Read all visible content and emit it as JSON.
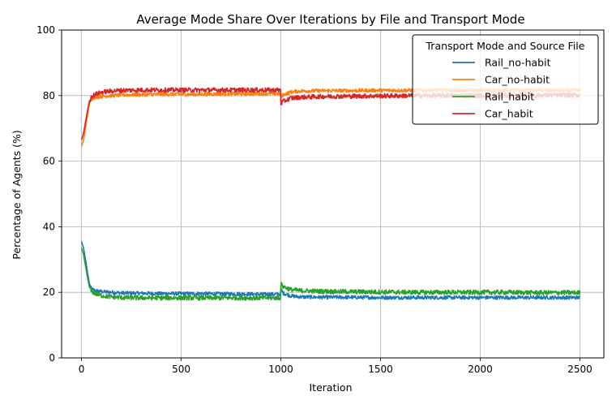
{
  "chart_data": {
    "type": "line",
    "title": "Average Mode Share Over Iterations by File and Transport Mode",
    "xlabel": "Iteration",
    "ylabel": "Percentage of Agents (%)",
    "xlim": [
      -100,
      2620
    ],
    "ylim": [
      0,
      100
    ],
    "xticks": [
      "0",
      "500",
      "1000",
      "1500",
      "2000",
      "2500"
    ],
    "yticks": [
      "0",
      "20",
      "40",
      "60",
      "80",
      "100"
    ],
    "grid": true,
    "legend": {
      "title": "Transport Mode and Source File",
      "position": "top-right"
    },
    "series": [
      {
        "name": "Rail_no-habit",
        "color": "#1f77b4",
        "x": [
          0,
          10,
          20,
          30,
          40,
          50,
          70,
          100,
          150,
          200,
          300,
          400,
          500,
          600,
          700,
          800,
          900,
          999,
          1000,
          1010,
          1050,
          1100,
          1200,
          1300,
          1500,
          1700,
          1900,
          2100,
          2300,
          2500
        ],
        "y": [
          35.5,
          33.5,
          30,
          26,
          22.5,
          21,
          20.5,
          20.2,
          20,
          19.8,
          19.7,
          19.6,
          19.6,
          19.6,
          19.5,
          19.5,
          19.4,
          19.4,
          21,
          19.8,
          18.9,
          18.6,
          18.5,
          18.5,
          18.4,
          18.4,
          18.4,
          18.4,
          18.4,
          18.4
        ],
        "noise": 0.55
      },
      {
        "name": "Car_no-habit",
        "color": "#ff7f0e",
        "x": [
          0,
          10,
          20,
          30,
          40,
          50,
          70,
          100,
          150,
          200,
          300,
          400,
          500,
          600,
          700,
          800,
          900,
          999,
          1000,
          1010,
          1050,
          1100,
          1200,
          1300,
          1500,
          1700,
          1900,
          2100,
          2300,
          2500
        ],
        "y": [
          64.5,
          66.5,
          70,
          74,
          77.5,
          79,
          79.5,
          79.8,
          80,
          80.2,
          80.3,
          80.4,
          80.4,
          80.4,
          80.5,
          80.5,
          80.6,
          80.6,
          79,
          80.2,
          81.1,
          81.4,
          81.5,
          81.5,
          81.6,
          81.6,
          81.6,
          81.6,
          81.6,
          81.6
        ],
        "noise": 0.55
      },
      {
        "name": "Rail_habit",
        "color": "#2ca02c",
        "x": [
          0,
          10,
          20,
          30,
          40,
          50,
          70,
          100,
          150,
          200,
          300,
          400,
          500,
          600,
          700,
          800,
          900,
          999,
          1000,
          1010,
          1050,
          1100,
          1200,
          1300,
          1500,
          1700,
          1900,
          2100,
          2300,
          2500
        ],
        "y": [
          33.5,
          31.5,
          28,
          24.5,
          21.5,
          20.3,
          19.6,
          19,
          18.6,
          18.4,
          18.3,
          18.3,
          18.3,
          18.3,
          18.3,
          18.3,
          18.3,
          18.3,
          22.5,
          21.8,
          20.8,
          20.5,
          20.3,
          20.2,
          20.1,
          20.0,
          20.0,
          20.0,
          19.9,
          19.9
        ],
        "noise": 0.7
      },
      {
        "name": "Car_habit",
        "color": "#d62728",
        "x": [
          0,
          10,
          20,
          30,
          40,
          50,
          70,
          100,
          150,
          200,
          300,
          400,
          500,
          600,
          700,
          800,
          900,
          999,
          1000,
          1010,
          1050,
          1100,
          1200,
          1300,
          1500,
          1700,
          1900,
          2100,
          2300,
          2500
        ],
        "y": [
          66.5,
          68.5,
          72,
          75.5,
          78.5,
          79.7,
          80.4,
          81,
          81.4,
          81.6,
          81.7,
          81.7,
          81.7,
          81.7,
          81.7,
          81.7,
          81.7,
          81.7,
          77.5,
          78.2,
          79.2,
          79.5,
          79.7,
          79.8,
          79.9,
          80.0,
          80.0,
          80.0,
          80.1,
          80.1
        ],
        "noise": 0.7
      }
    ]
  }
}
